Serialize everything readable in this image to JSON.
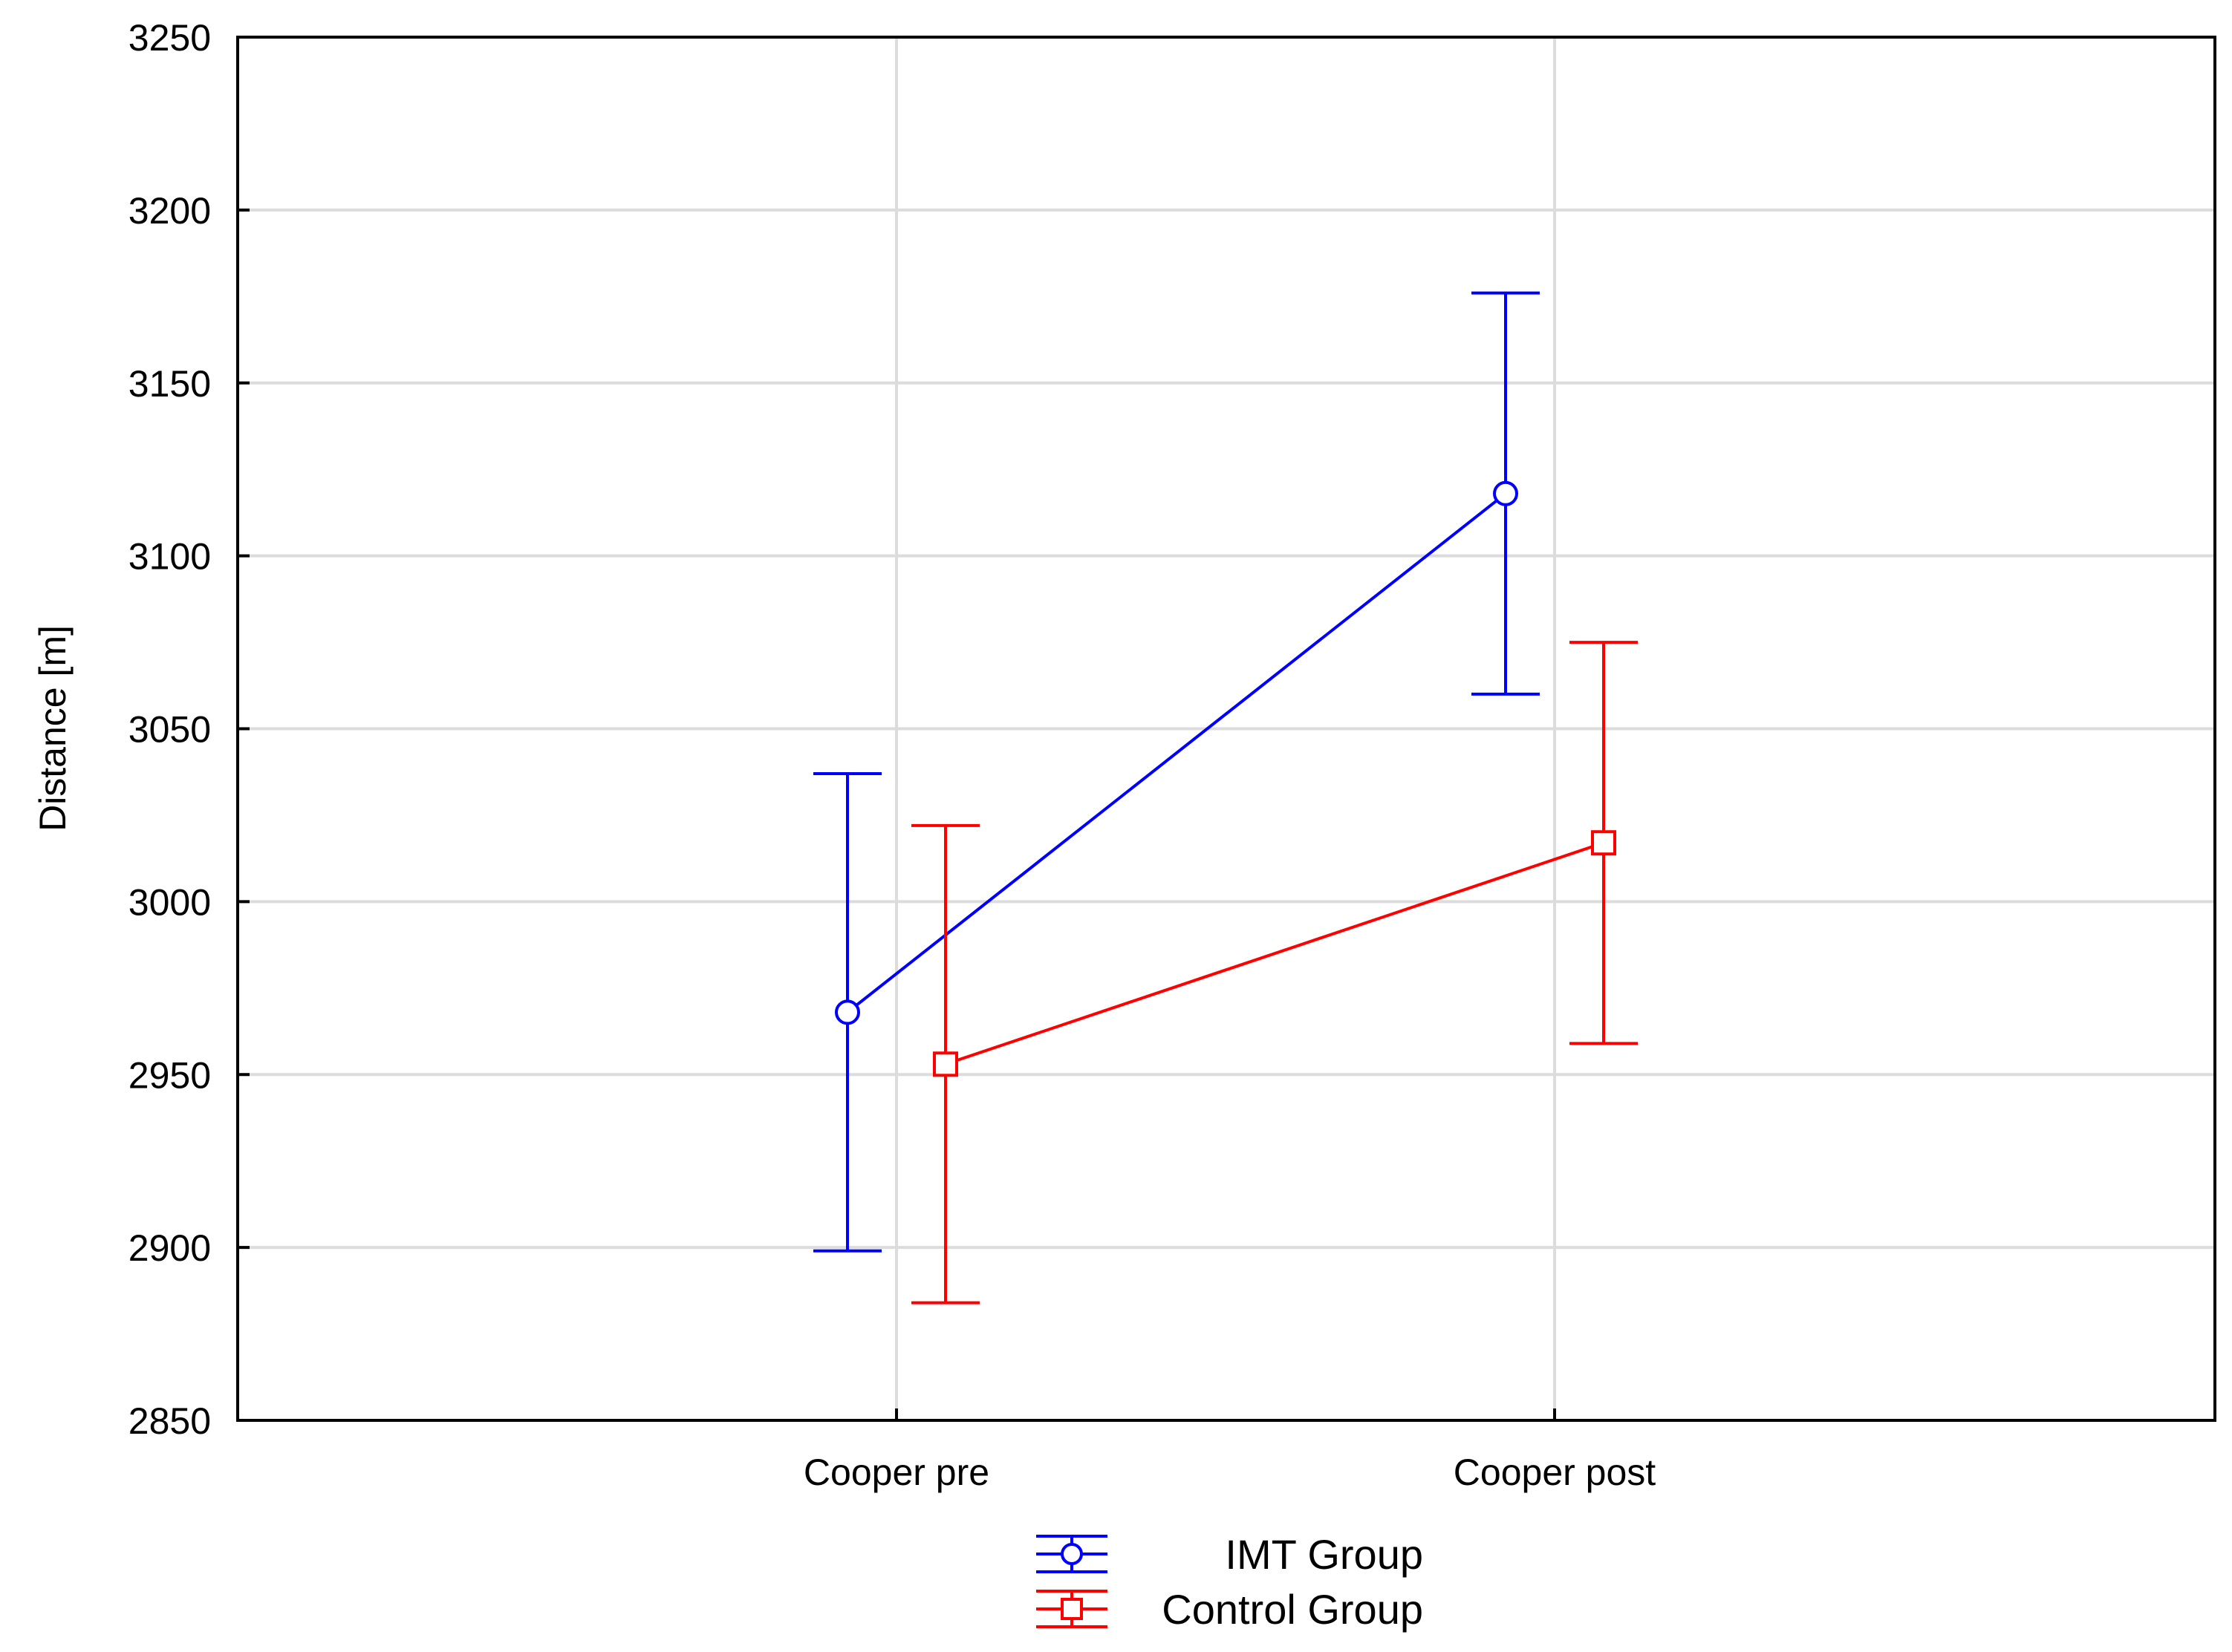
{
  "chart_data": {
    "type": "line",
    "title": "",
    "xlabel": "",
    "ylabel": "Distance [m]",
    "ylim": [
      2850,
      3250
    ],
    "yticks": [
      2850,
      2900,
      2950,
      3000,
      3050,
      3100,
      3150,
      3200,
      3250
    ],
    "categories": [
      "Cooper pre",
      "Cooper post"
    ],
    "grid": true,
    "legend_position": "bottom-center",
    "series": [
      {
        "name": "IMT Group",
        "color": "#0000ff",
        "marker": "circle",
        "values": [
          2968,
          3118
        ],
        "lower": [
          2899,
          3060
        ],
        "upper": [
          3037,
          3176
        ]
      },
      {
        "name": "Control Group",
        "color": "#ff0000",
        "marker": "square",
        "values": [
          2953,
          3017
        ],
        "lower": [
          2884,
          2959
        ],
        "upper": [
          3022,
          3075
        ]
      }
    ]
  }
}
